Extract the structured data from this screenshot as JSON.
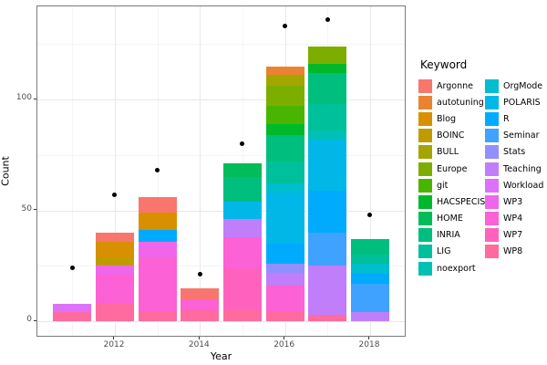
{
  "chart_data": {
    "type": "bar",
    "subtype": "stacked-bars-with-point-overlay",
    "title": "",
    "xlabel": "Year",
    "ylabel": "Count",
    "legend_title": "Keyword",
    "legend_position": "right",
    "grid": true,
    "x_axis": {
      "tick_labels": [
        "2012",
        "2014",
        "2016",
        "2018"
      ],
      "tick_years": [
        2012,
        2014,
        2016,
        2018
      ],
      "minor_years": [
        2011,
        2013,
        2015,
        2017
      ],
      "year_range": [
        2011,
        2018
      ]
    },
    "y_axis": {
      "tick_labels": [
        "0",
        "50",
        "100"
      ],
      "tick_values": [
        0,
        50,
        100
      ],
      "minor_values": [
        25,
        75,
        125
      ],
      "ylim": [
        0,
        142
      ]
    },
    "keywords": [
      {
        "name": "Argonne",
        "color": "#F8766D"
      },
      {
        "name": "autotuning",
        "color": "#EA8331"
      },
      {
        "name": "Blog",
        "color": "#D89000"
      },
      {
        "name": "BOINC",
        "color": "#C09B00"
      },
      {
        "name": "BULL",
        "color": "#A3A500"
      },
      {
        "name": "Europe",
        "color": "#7CAE00"
      },
      {
        "name": "git",
        "color": "#49B500"
      },
      {
        "name": "HACSPECIS",
        "color": "#00B92A"
      },
      {
        "name": "HOME",
        "color": "#00BC59"
      },
      {
        "name": "INRIA",
        "color": "#00BE7D"
      },
      {
        "name": "LIG",
        "color": "#00C09B"
      },
      {
        "name": "noexport",
        "color": "#00C0B6"
      },
      {
        "name": "OrgMode",
        "color": "#00BDCF"
      },
      {
        "name": "POLARIS",
        "color": "#00B7E8"
      },
      {
        "name": "R",
        "color": "#00ABFD"
      },
      {
        "name": "Seminar",
        "color": "#3FA2FF"
      },
      {
        "name": "Stats",
        "color": "#9090FF"
      },
      {
        "name": "Teaching",
        "color": "#C07EFA"
      },
      {
        "name": "Workload",
        "color": "#DD71FA"
      },
      {
        "name": "WP3",
        "color": "#F066EA"
      },
      {
        "name": "WP4",
        "color": "#FC61D5"
      },
      {
        "name": "WP7",
        "color": "#FF62BE"
      },
      {
        "name": "WP8",
        "color": "#FF6A9F"
      }
    ],
    "bars": [
      {
        "year": 2011,
        "total": 8,
        "segments_top_to_bottom": [
          {
            "keyword": "Workload",
            "value": 4
          },
          {
            "keyword": "WP8",
            "value": 4
          }
        ]
      },
      {
        "year": 2012,
        "total": 40,
        "segments_top_to_bottom": [
          {
            "keyword": "Argonne",
            "value": 4
          },
          {
            "keyword": "Blog",
            "value": 7
          },
          {
            "keyword": "BOINC",
            "value": 4
          },
          {
            "keyword": "WP3",
            "value": 4
          },
          {
            "keyword": "WP4",
            "value": 13
          },
          {
            "keyword": "WP8",
            "value": 8
          }
        ]
      },
      {
        "year": 2013,
        "total": 56,
        "segments_top_to_bottom": [
          {
            "keyword": "Argonne",
            "value": 7
          },
          {
            "keyword": "Blog",
            "value": 8
          },
          {
            "keyword": "R",
            "value": 5
          },
          {
            "keyword": "WP3",
            "value": 7
          },
          {
            "keyword": "WP4",
            "value": 25
          },
          {
            "keyword": "WP8",
            "value": 4
          }
        ]
      },
      {
        "year": 2014,
        "total": 15,
        "segments_top_to_bottom": [
          {
            "keyword": "Argonne",
            "value": 5
          },
          {
            "keyword": "WP4",
            "value": 5
          },
          {
            "keyword": "WP8",
            "value": 5
          }
        ]
      },
      {
        "year": 2015,
        "total": 71,
        "segments_top_to_bottom": [
          {
            "keyword": "HOME",
            "value": 6
          },
          {
            "keyword": "INRIA",
            "value": 11
          },
          {
            "keyword": "POLARIS",
            "value": 8
          },
          {
            "keyword": "Teaching",
            "value": 8
          },
          {
            "keyword": "WP4",
            "value": 14
          },
          {
            "keyword": "WP7",
            "value": 19
          },
          {
            "keyword": "WP8",
            "value": 5
          }
        ]
      },
      {
        "year": 2016,
        "total": 115,
        "segments_top_to_bottom": [
          {
            "keyword": "autotuning",
            "value": 4
          },
          {
            "keyword": "BULL",
            "value": 5
          },
          {
            "keyword": "Europe",
            "value": 9
          },
          {
            "keyword": "git",
            "value": 8
          },
          {
            "keyword": "HACSPECIS",
            "value": 5
          },
          {
            "keyword": "INRIA",
            "value": 12
          },
          {
            "keyword": "LIG",
            "value": 10
          },
          {
            "keyword": "OrgMode",
            "value": 4
          },
          {
            "keyword": "POLARIS",
            "value": 23
          },
          {
            "keyword": "R",
            "value": 9
          },
          {
            "keyword": "Stats",
            "value": 4
          },
          {
            "keyword": "Teaching",
            "value": 6
          },
          {
            "keyword": "WP4",
            "value": 12
          },
          {
            "keyword": "WP8",
            "value": 4
          }
        ]
      },
      {
        "year": 2017,
        "total": 124,
        "segments_top_to_bottom": [
          {
            "keyword": "Europe",
            "value": 8
          },
          {
            "keyword": "HACSPECIS",
            "value": 4
          },
          {
            "keyword": "INRIA",
            "value": 14
          },
          {
            "keyword": "LIG",
            "value": 12
          },
          {
            "keyword": "noexport",
            "value": 4
          },
          {
            "keyword": "POLARIS",
            "value": 23
          },
          {
            "keyword": "R",
            "value": 19
          },
          {
            "keyword": "Seminar",
            "value": 15
          },
          {
            "keyword": "Teaching",
            "value": 22
          },
          {
            "keyword": "WP8",
            "value": 3
          }
        ]
      },
      {
        "year": 2018,
        "total": 37,
        "segments_top_to_bottom": [
          {
            "keyword": "INRIA",
            "value": 7
          },
          {
            "keyword": "LIG",
            "value": 4
          },
          {
            "keyword": "OrgMode",
            "value": 4
          },
          {
            "keyword": "R",
            "value": 5
          },
          {
            "keyword": "Seminar",
            "value": 13
          },
          {
            "keyword": "Teaching",
            "value": 4
          }
        ]
      }
    ],
    "points": [
      {
        "year": 2011,
        "count": 24
      },
      {
        "year": 2012,
        "count": 57
      },
      {
        "year": 2013,
        "count": 68
      },
      {
        "year": 2014,
        "count": 21
      },
      {
        "year": 2015,
        "count": 80
      },
      {
        "year": 2016,
        "count": 133
      },
      {
        "year": 2017,
        "count": 136
      },
      {
        "year": 2018,
        "count": 48
      }
    ]
  }
}
